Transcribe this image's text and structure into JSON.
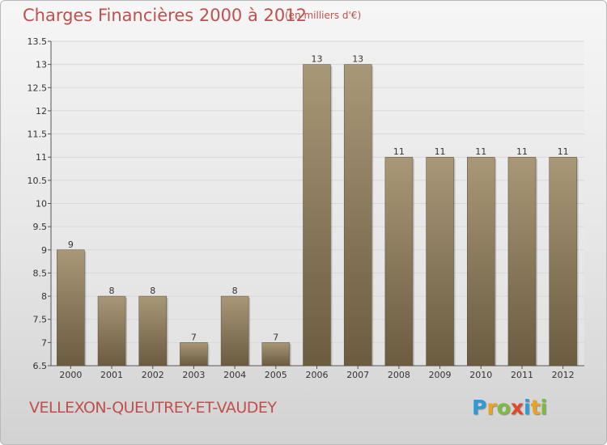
{
  "header": {
    "title": "Charges Financières 2000 à 2012",
    "unit": "(en milliers d'€)"
  },
  "commune": "VELLEXON-QUEUTREY-ET-VAUDEY",
  "logo": {
    "letters": [
      "P",
      "r",
      "o",
      "x",
      "i",
      "t",
      "i"
    ],
    "colors": [
      "#2d9bd8",
      "#e8a324",
      "#7dbb42",
      "#e04a2a",
      "#2d9bd8",
      "#e8a324",
      "#7dbb42"
    ]
  },
  "colors": {
    "bar_top": "#a89877",
    "bar_bottom": "#6b5b40",
    "title": "#c0504d"
  },
  "chart_data": {
    "type": "bar",
    "categories": [
      "2000",
      "2001",
      "2002",
      "2003",
      "2004",
      "2005",
      "2006",
      "2007",
      "2008",
      "2009",
      "2010",
      "2011",
      "2012"
    ],
    "values": [
      9,
      8,
      8,
      7,
      8,
      7,
      13,
      13,
      11,
      11,
      11,
      11,
      11
    ],
    "data_labels": [
      "9",
      "8",
      "8",
      "7",
      "8",
      "7",
      "13",
      "13",
      "11",
      "11",
      "11",
      "11",
      "11"
    ],
    "title": "Charges Financières 2000 à 2012",
    "xlabel": "",
    "ylabel": "",
    "ylim": [
      6.5,
      13.5
    ],
    "yticks": [
      6.5,
      7,
      7.5,
      8,
      8.5,
      9,
      9.5,
      10,
      10.5,
      11,
      11.5,
      12,
      12.5,
      13,
      13.5
    ],
    "ytick_labels": [
      "6.5",
      "7",
      "7.5",
      "8",
      "8.5",
      "9",
      "9.5",
      "10",
      "10.5",
      "11",
      "11.5",
      "12",
      "12.5",
      "13",
      "13.5"
    ],
    "grid": true
  }
}
